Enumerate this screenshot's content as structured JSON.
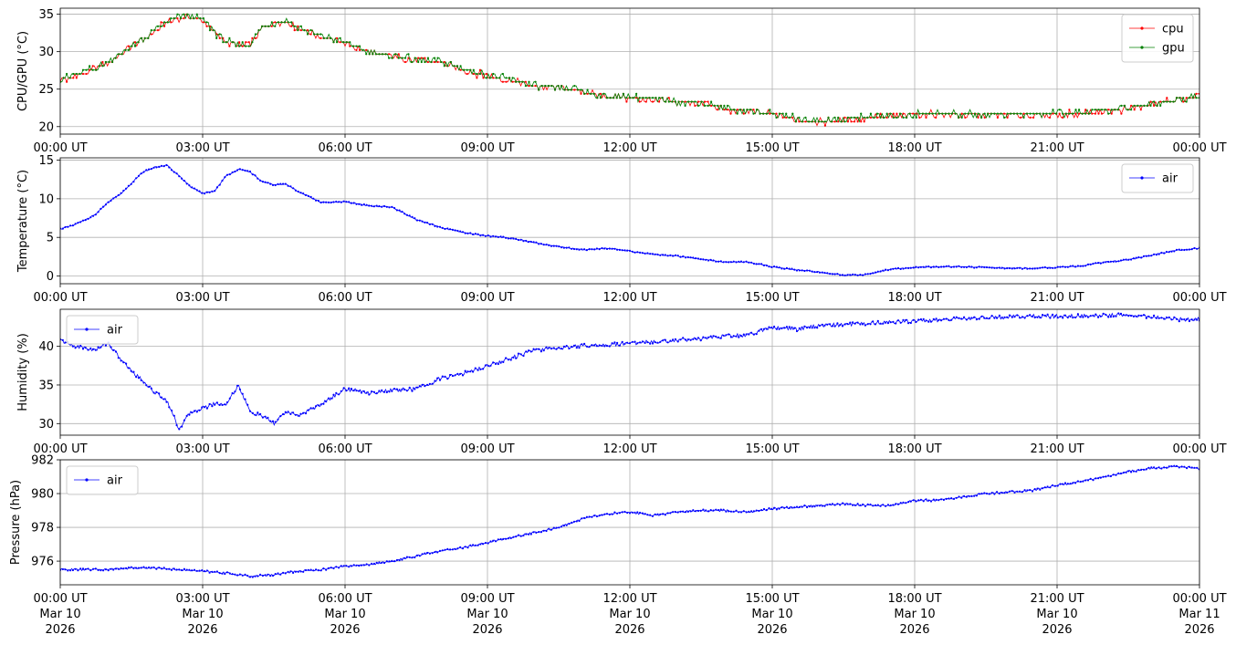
{
  "chart_data": [
    {
      "type": "line",
      "ylabel": "CPU/GPU (°C)",
      "ylim": [
        19,
        35.8
      ],
      "yticks": [
        20,
        25,
        30,
        35
      ],
      "xticks": [
        "00:00 UT",
        "03:00 UT",
        "06:00 UT",
        "09:00 UT",
        "12:00 UT",
        "15:00 UT",
        "18:00 UT",
        "21:00 UT",
        "00:00 UT"
      ],
      "legend": "upper-right",
      "series": [
        {
          "name": "cpu",
          "color": "#ff0000",
          "x": [
            0,
            0.25,
            0.5,
            0.75,
            1.0,
            1.25,
            1.5,
            1.75,
            2.0,
            2.25,
            2.5,
            2.75,
            3.0,
            3.25,
            3.5,
            3.75,
            4.0,
            4.25,
            4.5,
            4.75,
            5.0,
            5.5,
            6.0,
            6.5,
            7.0,
            7.5,
            8.0,
            8.5,
            9.0,
            9.5,
            10.0,
            10.5,
            11.0,
            11.5,
            12.0,
            12.5,
            13.0,
            13.5,
            14.0,
            14.5,
            15.0,
            15.5,
            16.0,
            16.5,
            17.0,
            17.5,
            18.0,
            18.5,
            19.0,
            19.5,
            20.0,
            20.5,
            21.0,
            21.5,
            22.0,
            22.5,
            23.0,
            23.5,
            24.0
          ],
          "y": [
            26.0,
            26.7,
            27.0,
            27.8,
            28.5,
            29.5,
            30.7,
            31.5,
            32.8,
            34.0,
            34.5,
            34.6,
            34.2,
            32.5,
            31.2,
            30.8,
            31.0,
            33.0,
            33.8,
            34.1,
            33.2,
            32.0,
            31.2,
            29.8,
            29.4,
            28.8,
            28.6,
            27.5,
            26.8,
            26.1,
            25.4,
            25.1,
            24.7,
            24.0,
            23.8,
            23.5,
            23.2,
            23.2,
            22.3,
            22.0,
            21.6,
            21.0,
            20.6,
            20.8,
            21.2,
            21.3,
            21.6,
            21.7,
            21.6,
            21.6,
            21.5,
            21.6,
            21.6,
            21.7,
            22.0,
            22.4,
            23.0,
            23.5,
            24.0
          ]
        },
        {
          "name": "gpu",
          "color": "#008000",
          "x": [
            0,
            0.25,
            0.5,
            0.75,
            1.0,
            1.25,
            1.5,
            1.75,
            2.0,
            2.25,
            2.5,
            2.75,
            3.0,
            3.25,
            3.5,
            3.75,
            4.0,
            4.25,
            4.5,
            4.75,
            5.0,
            5.5,
            6.0,
            6.5,
            7.0,
            7.5,
            8.0,
            8.5,
            9.0,
            9.5,
            10.0,
            10.5,
            11.0,
            11.5,
            12.0,
            12.5,
            13.0,
            13.5,
            14.0,
            14.5,
            15.0,
            15.5,
            16.0,
            16.5,
            17.0,
            17.5,
            18.0,
            18.5,
            19.0,
            19.5,
            20.0,
            20.5,
            21.0,
            21.5,
            22.0,
            22.5,
            23.0,
            23.5,
            24.0
          ],
          "y": [
            26.2,
            26.8,
            27.2,
            27.9,
            28.6,
            29.6,
            30.8,
            31.6,
            32.9,
            34.1,
            34.6,
            34.7,
            34.3,
            32.6,
            31.3,
            30.9,
            31.1,
            33.1,
            33.9,
            34.2,
            33.3,
            32.1,
            31.3,
            29.9,
            29.5,
            28.9,
            28.7,
            27.6,
            26.9,
            26.2,
            25.5,
            25.2,
            24.8,
            24.1,
            23.9,
            23.6,
            23.3,
            23.3,
            22.4,
            22.1,
            21.7,
            21.1,
            20.7,
            20.9,
            21.3,
            21.4,
            21.7,
            21.8,
            21.7,
            21.7,
            21.6,
            21.7,
            21.7,
            21.8,
            22.1,
            22.5,
            23.1,
            23.6,
            24.1
          ]
        }
      ]
    },
    {
      "type": "line",
      "ylabel": "Temperature (°C)",
      "ylim": [
        -1,
        15.3
      ],
      "yticks": [
        0,
        5,
        10,
        15
      ],
      "xticks": [
        "00:00 UT",
        "03:00 UT",
        "06:00 UT",
        "09:00 UT",
        "12:00 UT",
        "15:00 UT",
        "18:00 UT",
        "21:00 UT",
        "00:00 UT"
      ],
      "legend": "upper-right",
      "series": [
        {
          "name": "air",
          "color": "#0000ff",
          "x": [
            0,
            0.25,
            0.5,
            0.75,
            1.0,
            1.25,
            1.5,
            1.75,
            2.0,
            2.25,
            2.5,
            2.75,
            3.0,
            3.25,
            3.5,
            3.75,
            4.0,
            4.25,
            4.5,
            4.75,
            5.0,
            5.5,
            6.0,
            6.5,
            7.0,
            7.5,
            8.0,
            8.5,
            9.0,
            9.5,
            10.0,
            10.5,
            11.0,
            11.5,
            12.0,
            12.5,
            13.0,
            13.5,
            14.0,
            14.5,
            15.0,
            15.5,
            16.0,
            16.5,
            17.0,
            17.5,
            18.0,
            18.5,
            19.0,
            19.5,
            20.0,
            20.5,
            21.0,
            21.5,
            22.0,
            22.5,
            23.0,
            23.5,
            24.0
          ],
          "y": [
            6.1,
            6.5,
            7.2,
            8.0,
            9.5,
            10.5,
            12.0,
            13.5,
            14.1,
            14.3,
            13.0,
            11.5,
            10.7,
            11.0,
            13.0,
            13.8,
            13.5,
            12.2,
            11.8,
            11.9,
            11.0,
            9.5,
            9.6,
            9.1,
            8.9,
            7.3,
            6.3,
            5.6,
            5.2,
            4.9,
            4.3,
            3.8,
            3.4,
            3.6,
            3.2,
            2.8,
            2.6,
            2.2,
            1.8,
            1.8,
            1.2,
            0.8,
            0.5,
            0.1,
            0.2,
            0.9,
            1.1,
            1.2,
            1.2,
            1.1,
            1.0,
            1.0,
            1.1,
            1.3,
            1.8,
            2.1,
            2.7,
            3.3,
            3.6
          ]
        }
      ]
    },
    {
      "type": "line",
      "ylabel": "Humidity (%)",
      "ylim": [
        28.5,
        44.8
      ],
      "yticks": [
        30,
        35,
        40
      ],
      "xticks": [
        "00:00 UT",
        "03:00 UT",
        "06:00 UT",
        "09:00 UT",
        "12:00 UT",
        "15:00 UT",
        "18:00 UT",
        "21:00 UT",
        "00:00 UT"
      ],
      "legend": "upper-left",
      "series": [
        {
          "name": "air",
          "color": "#0000ff",
          "x": [
            0,
            0.25,
            0.5,
            0.75,
            1.0,
            1.25,
            1.5,
            1.75,
            2.0,
            2.25,
            2.5,
            2.75,
            3.0,
            3.25,
            3.5,
            3.75,
            4.0,
            4.25,
            4.5,
            4.75,
            5.0,
            5.5,
            6.0,
            6.5,
            7.0,
            7.5,
            8.0,
            8.5,
            9.0,
            9.5,
            10.0,
            10.5,
            11.0,
            11.5,
            12.0,
            12.5,
            13.0,
            13.5,
            14.0,
            14.5,
            15.0,
            15.5,
            16.0,
            16.5,
            17.0,
            17.5,
            18.0,
            18.5,
            19.0,
            19.5,
            20.0,
            20.5,
            21.0,
            21.5,
            22.0,
            22.5,
            23.0,
            23.5,
            24.0
          ],
          "y": [
            40.8,
            40.1,
            39.8,
            39.5,
            40.5,
            38.5,
            36.8,
            35.5,
            34.0,
            33.0,
            29.3,
            31.5,
            32.0,
            32.6,
            32.5,
            35.0,
            31.5,
            31.0,
            30.0,
            31.5,
            31.0,
            32.5,
            34.5,
            34.0,
            34.3,
            34.5,
            35.8,
            36.5,
            37.5,
            38.5,
            39.5,
            39.8,
            40.1,
            40.2,
            40.4,
            40.6,
            40.8,
            41.0,
            41.3,
            41.5,
            42.5,
            42.2,
            42.7,
            42.8,
            43.0,
            43.1,
            43.3,
            43.4,
            43.6,
            43.7,
            43.8,
            43.9,
            43.9,
            44.0,
            44.0,
            44.1,
            43.8,
            43.5,
            43.5
          ]
        }
      ]
    },
    {
      "type": "line",
      "ylabel": "Pressure (hPa)",
      "ylim": [
        974.6,
        982.0
      ],
      "yticks": [
        976,
        978,
        980,
        982
      ],
      "xticks": [
        "00:00 UT|Mar 10|2026",
        "03:00 UT|Mar 10|2026",
        "06:00 UT|Mar 10|2026",
        "09:00 UT|Mar 10|2026",
        "12:00 UT|Mar 10|2026",
        "15:00 UT|Mar 10|2026",
        "18:00 UT|Mar 10|2026",
        "21:00 UT|Mar 10|2026",
        "00:00 UT|Mar 11|2026"
      ],
      "legend": "upper-left",
      "series": [
        {
          "name": "air",
          "color": "#0000ff",
          "x": [
            0,
            0.5,
            1.0,
            1.5,
            2.0,
            2.5,
            3.0,
            3.5,
            4.0,
            4.5,
            5.0,
            5.5,
            6.0,
            6.5,
            7.0,
            7.5,
            8.0,
            8.5,
            9.0,
            9.5,
            10.0,
            10.5,
            11.0,
            11.5,
            12.0,
            12.5,
            13.0,
            13.5,
            14.0,
            14.5,
            15.0,
            15.5,
            16.0,
            16.5,
            17.0,
            17.5,
            18.0,
            18.5,
            19.0,
            19.5,
            20.0,
            20.5,
            21.0,
            21.5,
            22.0,
            22.5,
            23.0,
            23.5,
            24.0
          ],
          "y": [
            975.5,
            975.5,
            975.5,
            975.6,
            975.6,
            975.5,
            975.4,
            975.3,
            975.1,
            975.2,
            975.4,
            975.5,
            975.7,
            975.8,
            976.0,
            976.3,
            976.6,
            976.8,
            977.1,
            977.4,
            977.7,
            978.0,
            978.5,
            978.8,
            978.9,
            978.7,
            978.9,
            979.0,
            979.0,
            978.9,
            979.1,
            979.2,
            979.3,
            979.4,
            979.3,
            979.3,
            979.6,
            979.6,
            979.8,
            980.0,
            980.1,
            980.2,
            980.5,
            980.7,
            981.0,
            981.3,
            981.5,
            981.6,
            981.5
          ]
        }
      ]
    }
  ]
}
